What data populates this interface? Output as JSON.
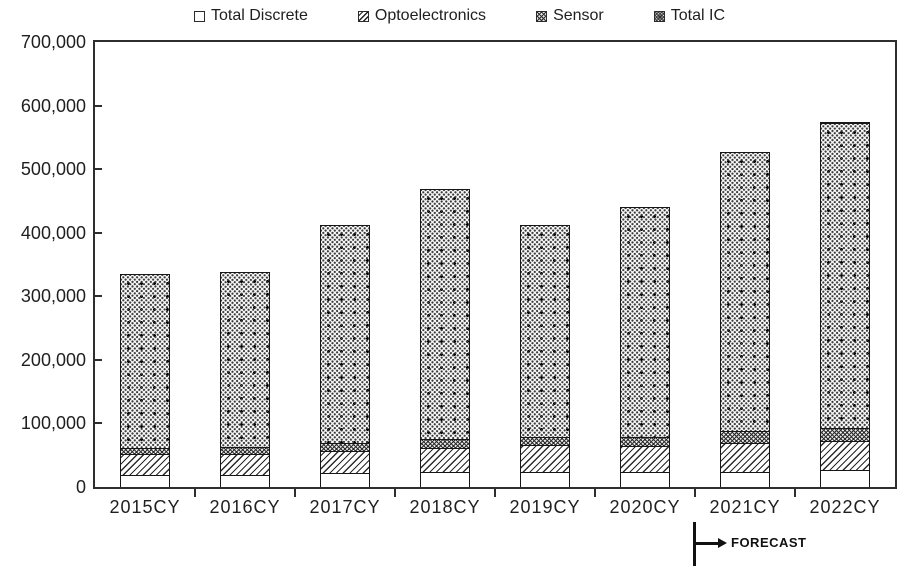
{
  "colors": {
    "background": "#ffffff",
    "ink": "#1f1f1f",
    "axis_line": "#2e2e2e",
    "pattern_ink": "#2b2b2b"
  },
  "chart_data": {
    "type": "bar",
    "stacked": true,
    "grid": false,
    "legend_position": "top",
    "categories": [
      "2015CY",
      "2016CY",
      "2017CY",
      "2018CY",
      "2019CY",
      "2020CY",
      "2021CY",
      "2022CY"
    ],
    "series": [
      {
        "name": "Total Discrete",
        "pattern": "plain",
        "values": [
          18600,
          19300,
          21700,
          24100,
          23900,
          23800,
          24000,
          26000
        ]
      },
      {
        "name": "Optoelectronics",
        "pattern": "diagonal-hatch",
        "values": [
          33200,
          32200,
          34800,
          38000,
          41600,
          40400,
          46000,
          46000
        ]
      },
      {
        "name": "Sensor",
        "pattern": "crosshatch",
        "values": [
          8800,
          10700,
          12600,
          13400,
          13500,
          15000,
          18000,
          21000
        ]
      },
      {
        "name": "Total IC",
        "pattern": "dots",
        "values": [
          274600,
          276700,
          343100,
          393300,
          333400,
          361200,
          439200,
          480400
        ]
      }
    ],
    "totals": [
      335200,
      338900,
      412200,
      468800,
      412400,
      440400,
      527200,
      573400
    ],
    "ylim": [
      0,
      700000
    ],
    "ytick_step": 100000,
    "ytick_labels": [
      "0",
      "100,000",
      "200,000",
      "300,000",
      "400,000",
      "500,000",
      "600,000",
      "700,000"
    ],
    "xlabel": "",
    "ylabel": "",
    "annotation": {
      "label": "FORECAST",
      "boundary_index": 6,
      "between": [
        "2020CY",
        "2021CY"
      ]
    }
  }
}
